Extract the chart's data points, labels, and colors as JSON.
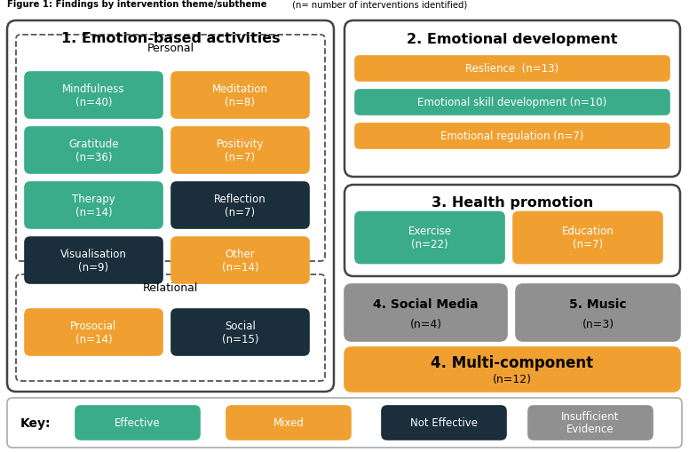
{
  "colors": {
    "effective": "#3aac8a",
    "mixed": "#f0a030",
    "not_effective": "#1a2e3b",
    "insufficient": "#909090",
    "white": "#ffffff",
    "border_dark": "#333333",
    "border_med": "#666666"
  },
  "title_bold": "Figure 1: Findings by intervention theme/subtheme",
  "title_normal": " (n= number of interventions identified)",
  "key_items": [
    {
      "label": "Effective",
      "color": "#3aac8a"
    },
    {
      "label": "Mixed",
      "color": "#f0a030"
    },
    {
      "label": "Not Effective",
      "color": "#1a2e3b"
    },
    {
      "label": "Insufficient\nEvidence",
      "color": "#909090"
    }
  ],
  "left_panel": {
    "title": "1. Emotion-based activities",
    "personal_label": "Personal",
    "relational_label": "Relational",
    "personal_items": [
      {
        "label": "Mindfulness\n(n=40)",
        "color": "#3aac8a",
        "col": 0,
        "row": 0
      },
      {
        "label": "Meditation\n(n=8)",
        "color": "#f0a030",
        "col": 1,
        "row": 0
      },
      {
        "label": "Gratitude\n(n=36)",
        "color": "#3aac8a",
        "col": 0,
        "row": 1
      },
      {
        "label": "Positivity\n(n=7)",
        "color": "#f0a030",
        "col": 1,
        "row": 1
      },
      {
        "label": "Therapy\n(n=14)",
        "color": "#3aac8a",
        "col": 0,
        "row": 2
      },
      {
        "label": "Reflection\n(n=7)",
        "color": "#1a2e3b",
        "col": 1,
        "row": 2
      },
      {
        "label": "Visualisation\n(n=9)",
        "color": "#1a2e3b",
        "col": 0,
        "row": 3
      },
      {
        "label": "Other\n(n=14)",
        "color": "#f0a030",
        "col": 1,
        "row": 3
      }
    ],
    "relational_items": [
      {
        "label": "Prosocial\n(n=14)",
        "color": "#f0a030",
        "col": 0
      },
      {
        "label": "Social\n(n=15)",
        "color": "#1a2e3b",
        "col": 1
      }
    ]
  },
  "emotional_dev": {
    "title": "2. Emotional development",
    "bars": [
      {
        "label": "Reslience  (n=13)",
        "color": "#f0a030"
      },
      {
        "label": "Emotional skill development (n=10)",
        "color": "#3aac8a"
      },
      {
        "label": "Emotional regulation (n=7)",
        "color": "#f0a030"
      }
    ]
  },
  "health_promo": {
    "title": "3. Health promotion",
    "items": [
      {
        "label": "Exercise\n(n=22)",
        "color": "#3aac8a"
      },
      {
        "label": "Education\n(n=7)",
        "color": "#f0a030"
      }
    ]
  },
  "social_media": {
    "title": "4. Social Media",
    "n": "(n=4)",
    "color": "#909090"
  },
  "music": {
    "title": "5. Music",
    "n": "(n=3)",
    "color": "#909090"
  },
  "multicomp": {
    "title": "4. Multi-component",
    "n": "(n=12)",
    "color": "#f0a030"
  }
}
